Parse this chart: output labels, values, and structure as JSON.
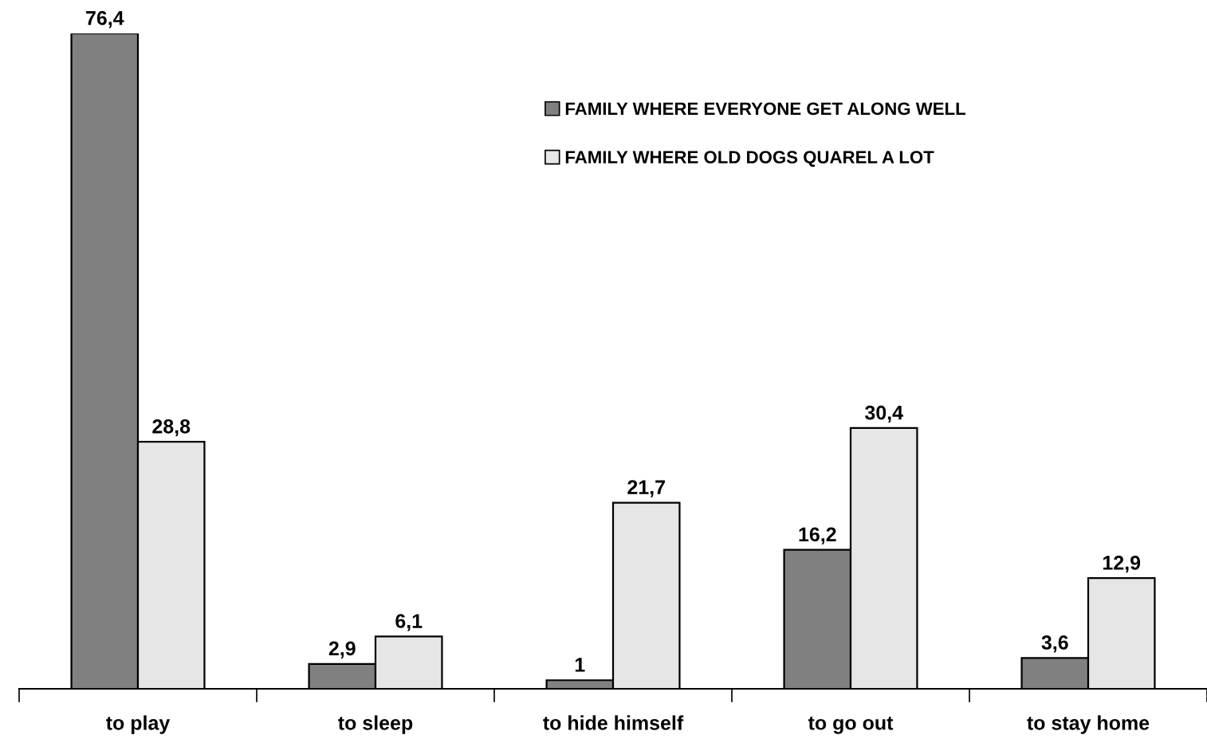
{
  "chart_data": {
    "type": "bar",
    "categories": [
      "to play",
      "to sleep",
      "to hide himself",
      "to go out",
      "to stay home"
    ],
    "series": [
      {
        "name": "FAMILY WHERE EVERYONE GET ALONG WELL",
        "color": "#808080",
        "values": [
          76.4,
          2.9,
          1,
          16.2,
          3.6
        ],
        "value_labels": [
          "76,4",
          "2,9",
          "1",
          "16,2",
          "3,6"
        ]
      },
      {
        "name": "FAMILY WHERE OLD DOGS QUAREL A LOT",
        "color": "#e6e6e6",
        "values": [
          28.8,
          6.1,
          21.7,
          30.4,
          12.9
        ],
        "value_labels": [
          "28,8",
          "6,1",
          "21,7",
          "30,4",
          "12,9"
        ]
      }
    ],
    "legend": "top",
    "grid": false
  }
}
